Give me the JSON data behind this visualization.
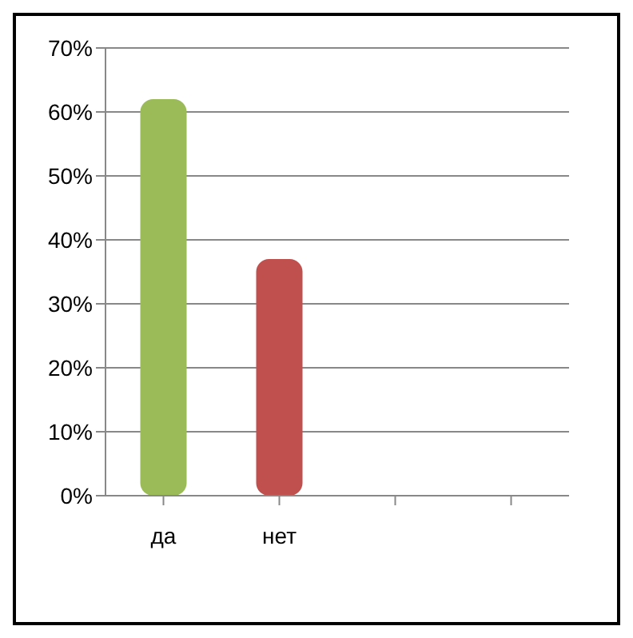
{
  "chart_data": {
    "type": "bar",
    "categories": [
      "да",
      "нет",
      null,
      null
    ],
    "values": [
      62,
      37,
      null,
      null
    ],
    "colors": [
      "#9bbb59",
      "#c0504d",
      null,
      null
    ],
    "ylim": [
      0,
      70
    ],
    "yticks": [
      {
        "value": 0,
        "label": "0%"
      },
      {
        "value": 10,
        "label": "10%"
      },
      {
        "value": 20,
        "label": "20%"
      },
      {
        "value": 30,
        "label": "30%"
      },
      {
        "value": 40,
        "label": "40%"
      },
      {
        "value": 50,
        "label": "50%"
      },
      {
        "value": 60,
        "label": "60%"
      },
      {
        "value": 70,
        "label": "70%"
      }
    ],
    "grid": "y"
  }
}
